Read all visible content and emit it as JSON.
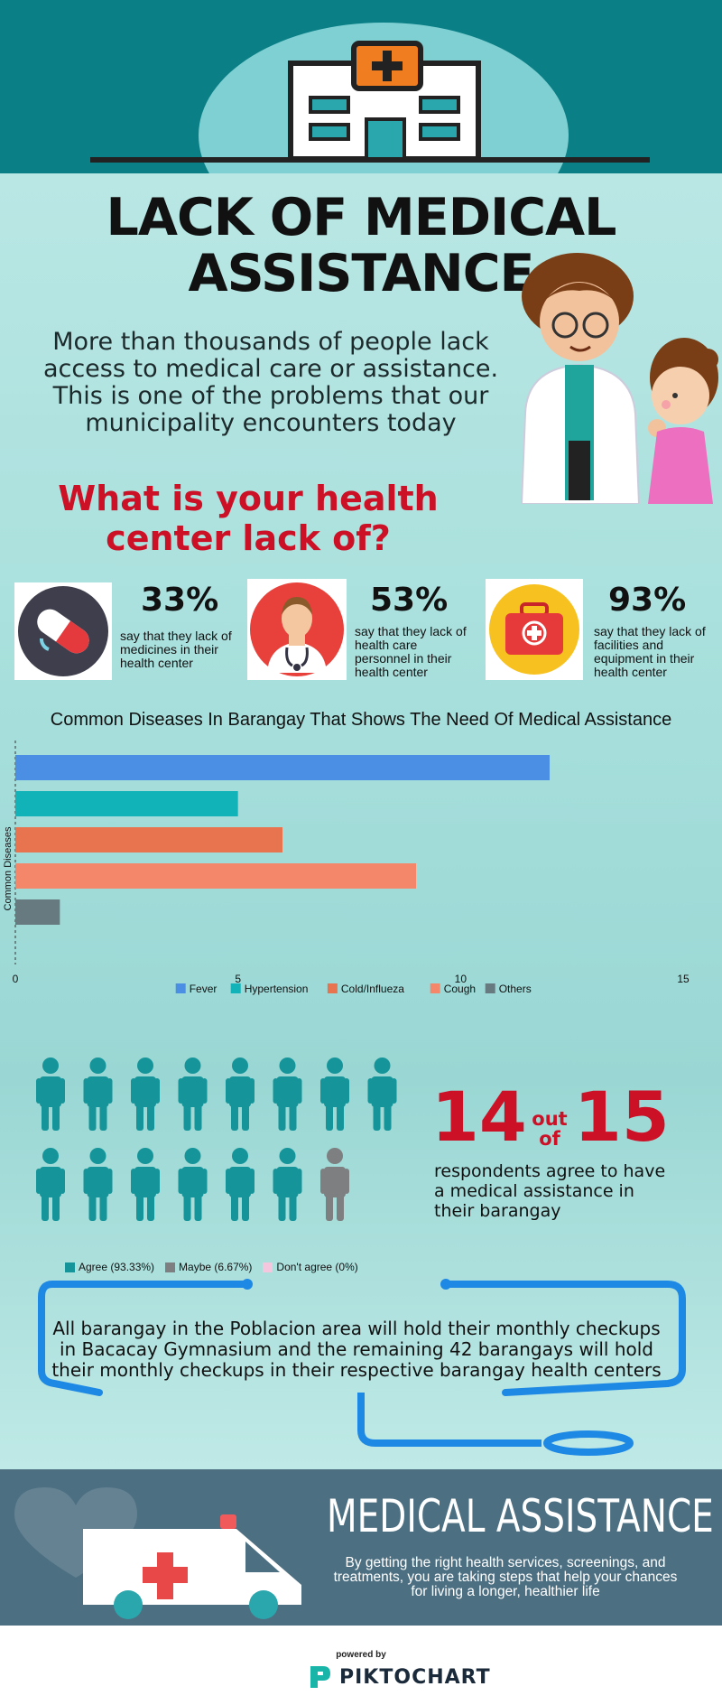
{
  "header": {
    "title_line1": "LACK OF MEDICAL",
    "title_line2": "ASSISTANCE",
    "intro": "More than thousands of people lack access to medical care or assistance. This is one of the problems that our municipality encounters today"
  },
  "question": {
    "line1": "What is your health",
    "line2": "center lack of?"
  },
  "stats": [
    {
      "percent": "33%",
      "description": "say that they lack of medicines in their health center",
      "icon": "pill-capsule-icon"
    },
    {
      "percent": "53%",
      "description": "say that they lack of health care personnel in their health center",
      "icon": "doctor-icon"
    },
    {
      "percent": "93%",
      "description": "say that they lack of facilities and equipment in their health center",
      "icon": "first-aid-kit-icon"
    }
  ],
  "chart_data": {
    "type": "bar",
    "orientation": "horizontal",
    "title": "Common Diseases In Barangay That Shows The Need Of Medical Assistance",
    "ylabel": "Common Diseases",
    "xlim": [
      0,
      15
    ],
    "xticks": [
      "0",
      "5",
      "10",
      "15"
    ],
    "series": [
      {
        "name": "Fever",
        "value": 12,
        "color": "#4a8fe3"
      },
      {
        "name": "Hypertension",
        "value": 5,
        "color": "#12b3b8"
      },
      {
        "name": "Cold/Influeza",
        "value": 6,
        "color": "#e8734f"
      },
      {
        "name": "Cough",
        "value": 9,
        "color": "#f4876a"
      },
      {
        "name": "Others",
        "value": 1,
        "color": "#667a80"
      }
    ],
    "legend_position": "bottom"
  },
  "survey": {
    "count": "14",
    "out_word": "out",
    "of_word": "of",
    "total": "15",
    "description": "respondents agree to have a medical assistance in their barangay",
    "agree_count": 14,
    "maybe_count": 1,
    "legend": [
      {
        "label": "Agree (93.33%)",
        "color": "#15959a"
      },
      {
        "label": "Maybe (6.67%)",
        "color": "#7d7f80"
      },
      {
        "label": "Don't agree (0%)",
        "color": "#f5c7df"
      }
    ]
  },
  "checkup": {
    "text": "All barangay in the Poblacion area will hold their monthly checkups in Bacacay Gymnasium and the remaining 42 barangays will hold their monthly checkups in their respective barangay health centers"
  },
  "medical_assistance": {
    "title": "MEDICAL ASSISTANCE",
    "description": "By getting the right health services, screenings, and treatments, you are taking steps that help your chances for living a longer, healthier life"
  },
  "footer": {
    "powered_by": "powered by",
    "brand": "PIKTOCHART"
  },
  "colors": {
    "accent_red": "#cc1026",
    "teal": "#0b7f86",
    "figure_teal": "#15959a"
  }
}
